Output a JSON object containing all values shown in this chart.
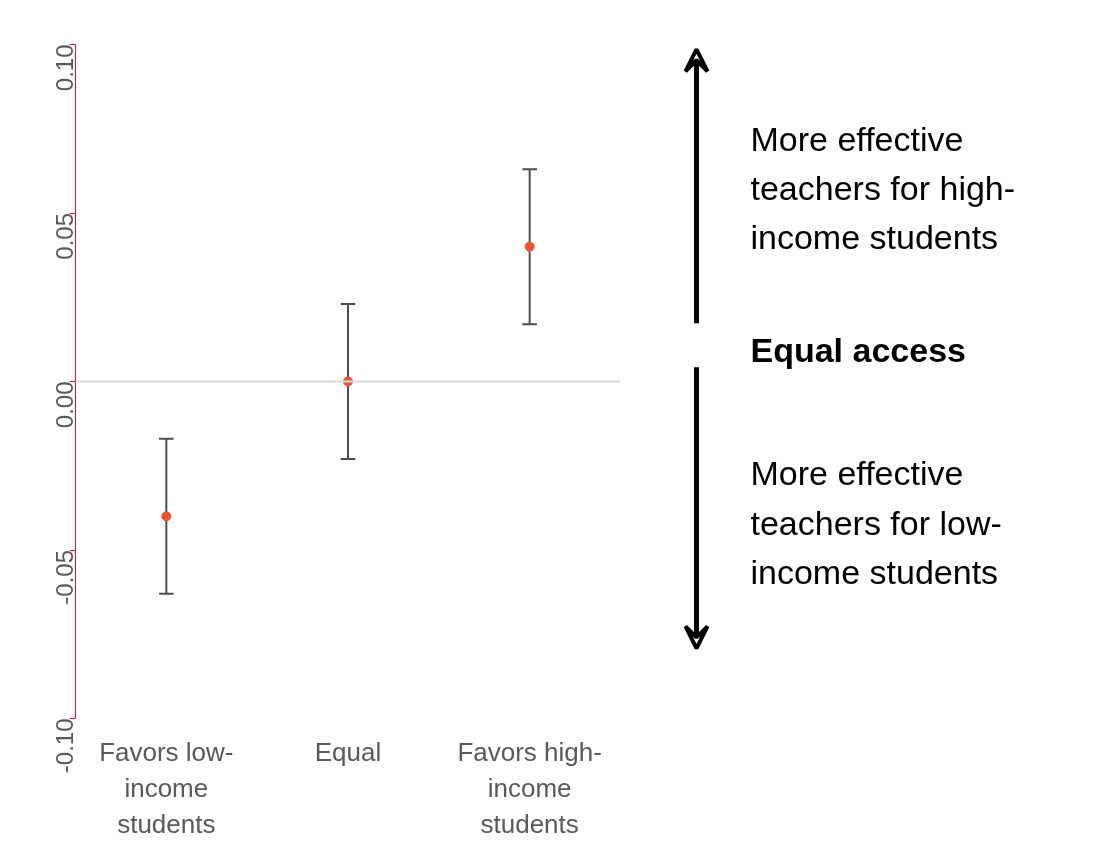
{
  "chart_data": {
    "type": "scatter",
    "categories": [
      "Favors low-income students",
      "Equal",
      "Favors high-income students"
    ],
    "series": [
      {
        "color": "#e8552f",
        "values": [
          -0.04,
          0.0,
          0.04
        ],
        "errors": [
          0.023,
          0.023,
          0.023
        ]
      }
    ],
    "ylim": [
      -0.1,
      0.1
    ],
    "yticks": [
      {
        "value": -0.1,
        "label": "-0.10"
      },
      {
        "value": -0.05,
        "label": "-0.05"
      },
      {
        "value": 0,
        "label": "0.00"
      },
      {
        "value": 0.05,
        "label": "0.05"
      },
      {
        "value": 0.1,
        "label": "0.10"
      }
    ],
    "ref_lines": [
      {
        "axis": "y",
        "value": 0,
        "color": "#d9d9d9"
      }
    ],
    "annotations": [
      "More effective teachers for high-income students",
      "Equal access",
      "More effective teachers for low-income students"
    ],
    "grid": false,
    "marker": "circle"
  }
}
